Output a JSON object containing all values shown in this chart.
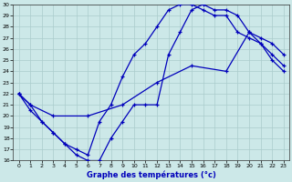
{
  "title": "Graphe des températures (°c)",
  "bg_color": "#cce8e8",
  "grid_color": "#aacccc",
  "line_color": "#0000bb",
  "xlim": [
    -0.5,
    23.5
  ],
  "ylim": [
    16,
    30
  ],
  "xticks": [
    0,
    1,
    2,
    3,
    4,
    5,
    6,
    7,
    8,
    9,
    10,
    11,
    12,
    13,
    14,
    15,
    16,
    17,
    18,
    19,
    20,
    21,
    22,
    23
  ],
  "yticks": [
    16,
    17,
    18,
    19,
    20,
    21,
    22,
    23,
    24,
    25,
    26,
    27,
    28,
    29,
    30
  ],
  "line1_x": [
    0,
    1,
    2,
    3,
    4,
    5,
    6,
    7,
    8,
    9,
    10,
    11,
    12,
    13,
    14,
    15,
    16,
    17,
    18,
    19,
    20,
    21,
    22,
    23
  ],
  "line1_y": [
    22.0,
    20.5,
    19.5,
    18.5,
    17.5,
    16.5,
    16.0,
    16.0,
    18.0,
    19.5,
    21.0,
    21.0,
    21.0,
    25.5,
    27.5,
    29.5,
    30.0,
    29.5,
    29.5,
    29.0,
    27.5,
    26.5,
    25.5,
    24.5
  ],
  "line2_x": [
    0,
    1,
    2,
    3,
    4,
    5,
    6,
    7,
    8,
    9,
    10,
    11,
    12,
    13,
    14,
    15,
    16,
    17,
    18,
    19,
    20,
    21,
    22,
    23
  ],
  "line2_y": [
    22.0,
    21.0,
    19.5,
    18.5,
    17.5,
    17.0,
    16.5,
    19.5,
    21.0,
    23.5,
    25.5,
    26.5,
    28.0,
    29.5,
    30.0,
    30.0,
    29.5,
    29.0,
    29.0,
    27.5,
    27.0,
    26.5,
    25.0,
    24.0
  ],
  "line3_x": [
    0,
    1,
    3,
    6,
    9,
    12,
    15,
    18,
    20,
    21,
    22,
    23
  ],
  "line3_y": [
    22.0,
    21.0,
    20.0,
    20.0,
    21.0,
    23.0,
    24.5,
    24.0,
    27.5,
    27.0,
    26.5,
    25.5
  ]
}
